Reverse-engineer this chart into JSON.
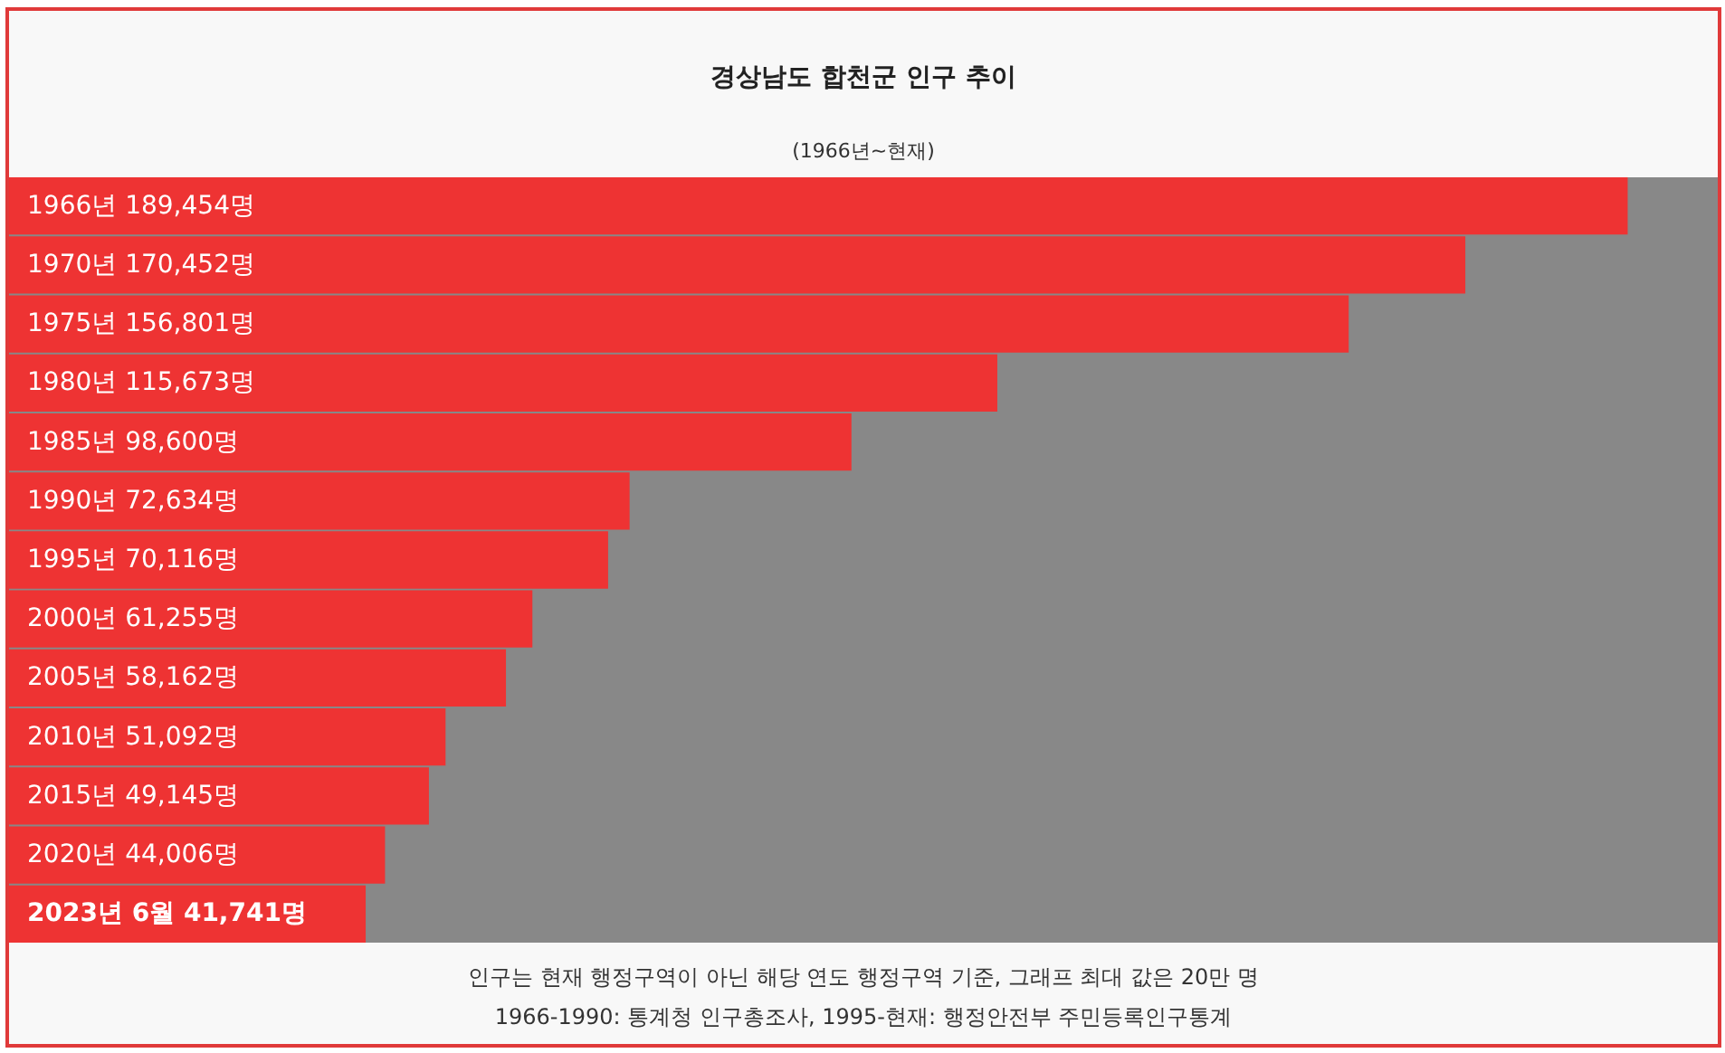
{
  "chart_data": {
    "type": "bar",
    "orientation": "horizontal",
    "title": "경상남도 합천군 인구 추이",
    "subtitle": "(1966년~현재)",
    "categories": [
      "1966년",
      "1970년",
      "1975년",
      "1980년",
      "1985년",
      "1990년",
      "1995년",
      "2000년",
      "2005년",
      "2010년",
      "2015년",
      "2020년",
      "2023년 6월"
    ],
    "values": [
      189454,
      170452,
      156801,
      115673,
      98600,
      72634,
      70116,
      61255,
      58162,
      51092,
      49145,
      44006,
      41741
    ],
    "value_labels": [
      "189,454명",
      "170,452명",
      "156,801명",
      "115,673명",
      "98,600명",
      "72,634명",
      "70,116명",
      "61,255명",
      "58,162명",
      "51,092명",
      "49,145명",
      "44,006명",
      "41,741명"
    ],
    "color": "#ee3333",
    "annotations": [
      "인구는 현재 행정구역이 아닌 해당 연도 행정구역 기준, 그래프 최대 값은 20만 명",
      "1966-1990: 통계청 인구총조사, 1995-현재: 행정안전부 주민등록인구통계"
    ]
  }
}
